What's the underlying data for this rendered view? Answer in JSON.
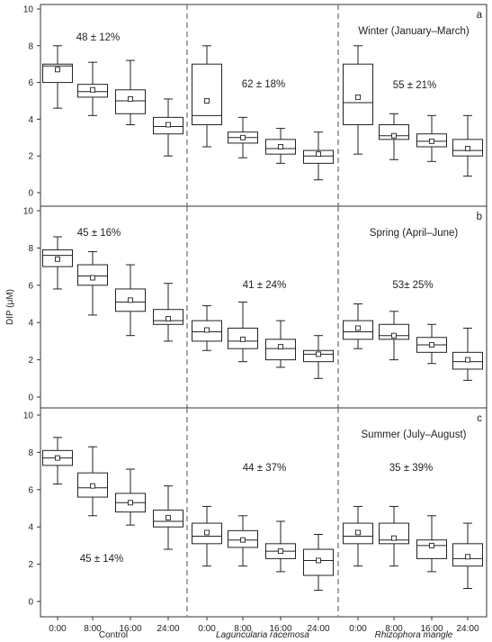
{
  "chart_data": {
    "type": "box",
    "ylabel": "DIP (μM)",
    "ylim": [
      0,
      10
    ],
    "yticks": [
      0,
      2,
      4,
      6,
      8,
      10
    ],
    "time_points": [
      "0:00",
      "8:00",
      "16:00",
      "24:00"
    ],
    "groups": [
      "Control",
      "Laguncularia racemosa",
      "Rhizophora mangle"
    ],
    "panels": [
      {
        "letter": "a",
        "season": "Winter (January–March)",
        "group_labels": [
          "48 ± 12%",
          "62 ± 18%",
          "55 ± 21%"
        ],
        "boxes": [
          [
            {
              "min": 4.6,
              "q1": 6.0,
              "median": 6.9,
              "q3": 7.0,
              "max": 8.0,
              "mean": 6.7
            },
            {
              "min": 4.2,
              "q1": 5.2,
              "median": 5.5,
              "q3": 5.9,
              "max": 7.1,
              "mean": 5.6
            },
            {
              "min": 3.7,
              "q1": 4.3,
              "median": 5.0,
              "q3": 5.6,
              "max": 7.2,
              "mean": 5.1
            },
            {
              "min": 2.0,
              "q1": 3.2,
              "median": 3.6,
              "q3": 4.1,
              "max": 5.1,
              "mean": 3.7
            }
          ],
          [
            {
              "min": 2.5,
              "q1": 3.7,
              "median": 4.2,
              "q3": 7.0,
              "max": 8.0,
              "mean": 5.0
            },
            {
              "min": 1.9,
              "q1": 2.7,
              "median": 3.0,
              "q3": 3.3,
              "max": 4.1,
              "mean": 3.0
            },
            {
              "min": 1.6,
              "q1": 2.1,
              "median": 2.4,
              "q3": 2.9,
              "max": 3.5,
              "mean": 2.5
            },
            {
              "min": 0.7,
              "q1": 1.6,
              "median": 2.0,
              "q3": 2.3,
              "max": 3.3,
              "mean": 2.1
            }
          ],
          [
            {
              "min": 2.1,
              "q1": 3.7,
              "median": 4.9,
              "q3": 7.0,
              "max": 8.0,
              "mean": 5.2
            },
            {
              "min": 1.8,
              "q1": 2.9,
              "median": 3.1,
              "q3": 3.7,
              "max": 4.3,
              "mean": 3.1
            },
            {
              "min": 1.7,
              "q1": 2.5,
              "median": 2.8,
              "q3": 3.2,
              "max": 4.2,
              "mean": 2.8
            },
            {
              "min": 0.9,
              "q1": 2.0,
              "median": 2.3,
              "q3": 2.9,
              "max": 4.2,
              "mean": 2.4
            }
          ]
        ]
      },
      {
        "letter": "b",
        "season": "Spring (April–June)",
        "group_labels": [
          "45 ± 16%",
          "41 ± 24%",
          "53± 25%"
        ],
        "boxes": [
          [
            {
              "min": 5.8,
              "q1": 7.0,
              "median": 7.6,
              "q3": 7.9,
              "max": 8.6,
              "mean": 7.4
            },
            {
              "min": 4.4,
              "q1": 6.0,
              "median": 6.5,
              "q3": 7.1,
              "max": 7.8,
              "mean": 6.4
            },
            {
              "min": 3.3,
              "q1": 4.6,
              "median": 5.1,
              "q3": 5.8,
              "max": 7.1,
              "mean": 5.2
            },
            {
              "min": 3.0,
              "q1": 3.9,
              "median": 4.1,
              "q3": 4.7,
              "max": 6.1,
              "mean": 4.2
            }
          ],
          [
            {
              "min": 2.5,
              "q1": 3.0,
              "median": 3.5,
              "q3": 4.1,
              "max": 4.9,
              "mean": 3.6
            },
            {
              "min": 1.9,
              "q1": 2.6,
              "median": 3.0,
              "q3": 3.7,
              "max": 5.1,
              "mean": 3.1
            },
            {
              "min": 1.6,
              "q1": 2.0,
              "median": 2.6,
              "q3": 3.1,
              "max": 4.1,
              "mean": 2.7
            },
            {
              "min": 1.0,
              "q1": 1.9,
              "median": 2.3,
              "q3": 2.5,
              "max": 3.3,
              "mean": 2.3
            }
          ],
          [
            {
              "min": 2.6,
              "q1": 3.1,
              "median": 3.5,
              "q3": 4.1,
              "max": 5.0,
              "mean": 3.7
            },
            {
              "min": 2.0,
              "q1": 3.1,
              "median": 3.3,
              "q3": 3.9,
              "max": 4.6,
              "mean": 3.3
            },
            {
              "min": 1.8,
              "q1": 2.4,
              "median": 2.8,
              "q3": 3.2,
              "max": 3.9,
              "mean": 2.8
            },
            {
              "min": 0.9,
              "q1": 1.5,
              "median": 1.9,
              "q3": 2.4,
              "max": 3.7,
              "mean": 2.0
            }
          ]
        ]
      },
      {
        "letter": "c",
        "season": "Summer (July–August)",
        "group_labels": [
          "45 ± 14%",
          "44 ± 37%",
          "35 ± 39%"
        ],
        "boxes": [
          [
            {
              "min": 6.3,
              "q1": 7.3,
              "median": 7.7,
              "q3": 8.1,
              "max": 8.8,
              "mean": 7.7
            },
            {
              "min": 4.6,
              "q1": 5.6,
              "median": 6.1,
              "q3": 6.9,
              "max": 8.3,
              "mean": 6.2
            },
            {
              "min": 4.1,
              "q1": 4.8,
              "median": 5.3,
              "q3": 5.8,
              "max": 7.1,
              "mean": 5.3
            },
            {
              "min": 2.8,
              "q1": 4.0,
              "median": 4.3,
              "q3": 4.9,
              "max": 6.2,
              "mean": 4.5
            }
          ],
          [
            {
              "min": 1.9,
              "q1": 3.1,
              "median": 3.5,
              "q3": 4.2,
              "max": 5.1,
              "mean": 3.7
            },
            {
              "min": 1.9,
              "q1": 2.9,
              "median": 3.3,
              "q3": 3.8,
              "max": 4.6,
              "mean": 3.3
            },
            {
              "min": 1.6,
              "q1": 2.3,
              "median": 2.7,
              "q3": 3.1,
              "max": 4.3,
              "mean": 2.7
            },
            {
              "min": 0.6,
              "q1": 1.4,
              "median": 2.2,
              "q3": 2.8,
              "max": 3.6,
              "mean": 2.2
            }
          ],
          [
            {
              "min": 1.9,
              "q1": 3.1,
              "median": 3.5,
              "q3": 4.2,
              "max": 5.1,
              "mean": 3.7
            },
            {
              "min": 1.9,
              "q1": 3.1,
              "median": 3.3,
              "q3": 4.2,
              "max": 5.1,
              "mean": 3.4
            },
            {
              "min": 1.6,
              "q1": 2.3,
              "median": 3.0,
              "q3": 3.3,
              "max": 4.6,
              "mean": 3.0
            },
            {
              "min": 0.7,
              "q1": 1.9,
              "median": 2.3,
              "q3": 3.1,
              "max": 4.2,
              "mean": 2.4
            }
          ]
        ]
      }
    ]
  }
}
